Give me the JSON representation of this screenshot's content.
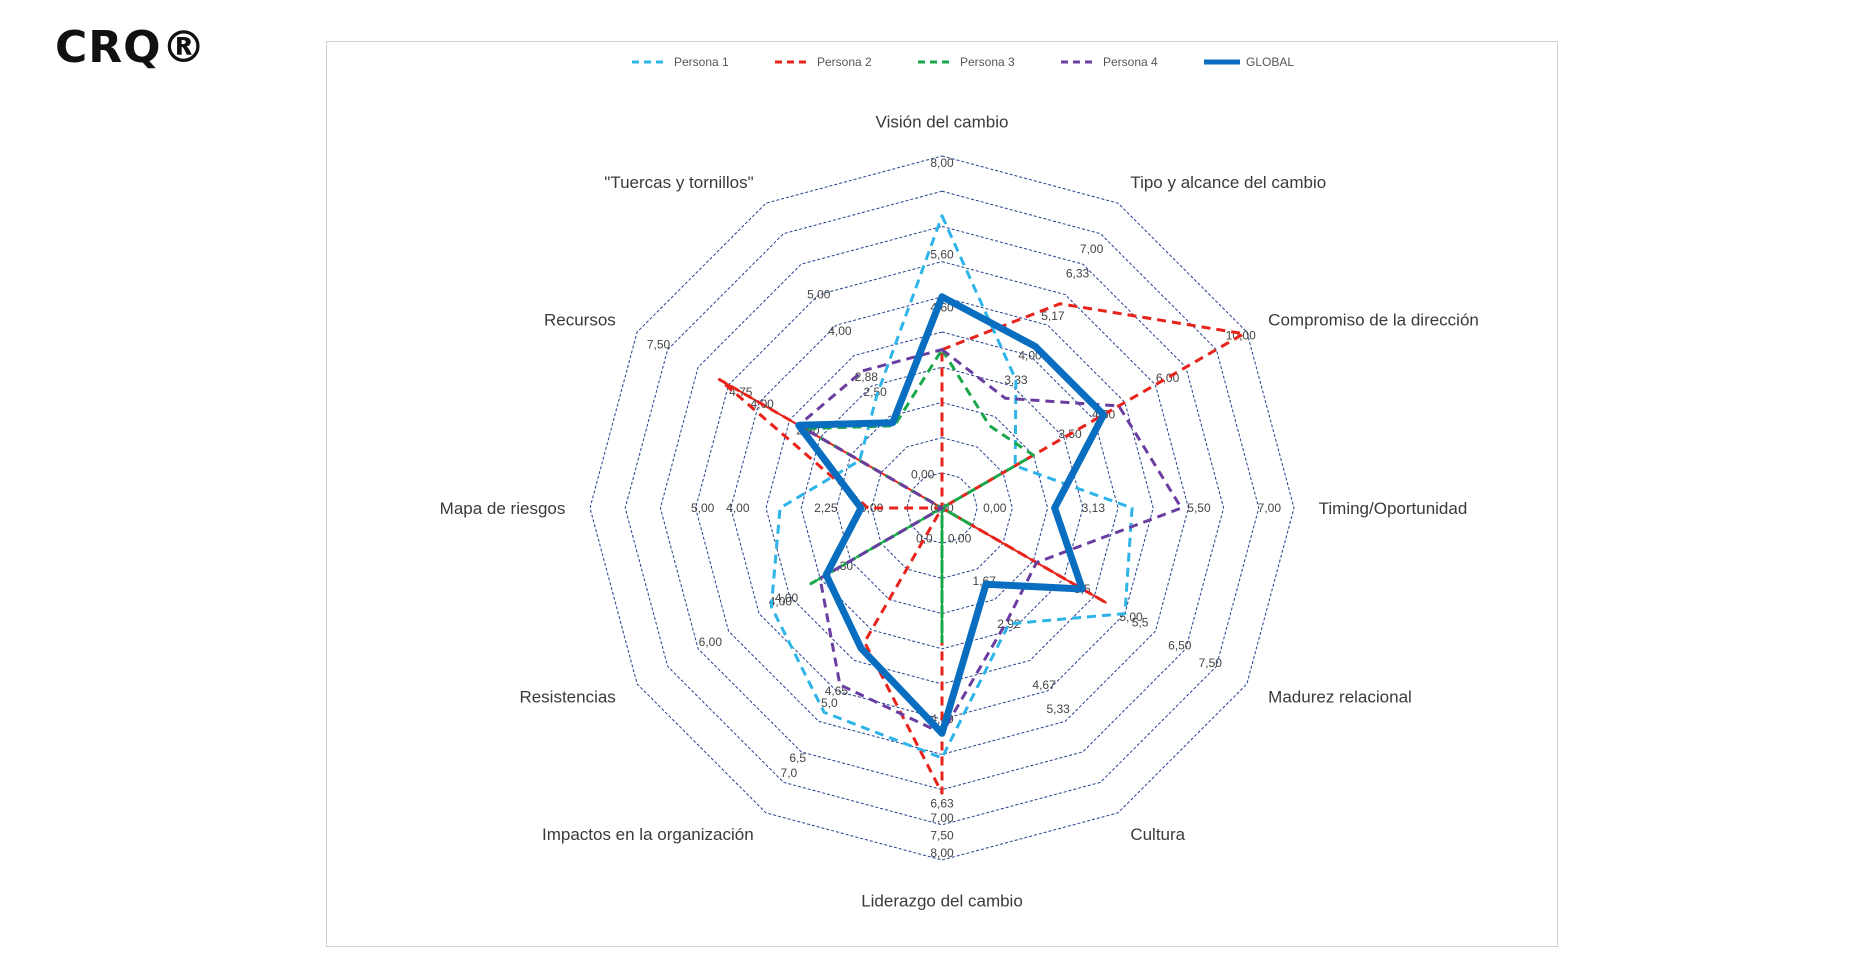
{
  "brand": {
    "title": "CRQ®"
  },
  "chart_data": {
    "type": "radar",
    "title": "",
    "axes": [
      "Visión del cambio",
      "Tipo y alcance del cambio",
      "Compromiso de la dirección",
      "Timing/Oportunidad",
      "Madurez relacional",
      "Cultura",
      "Liderazgo del cambio",
      "Impactos en la organización",
      "Resistencias",
      "Mapa de riesgos",
      "Recursos",
      "\"Tuercas y tornillos\""
    ],
    "value_range": [
      0,
      1
    ],
    "grid": true,
    "grid_levels": 10,
    "legend_position": "top",
    "tick_labels": [
      {
        "axis": 0,
        "labels": [
          [
            "5,60",
            0.72
          ],
          [
            "4,60",
            0.57
          ],
          [
            "0,00",
            0.0
          ],
          [
            "8,00",
            0.98
          ]
        ]
      },
      {
        "axis": 1,
        "labels": [
          [
            "7,00",
            0.85
          ],
          [
            "6,33",
            0.77
          ],
          [
            "5,17",
            0.63
          ],
          [
            "4,00",
            0.5
          ],
          [
            "3,33",
            0.42
          ]
        ]
      },
      {
        "axis": 2,
        "labels": [
          [
            "10,00",
            0.98
          ],
          [
            "6,00",
            0.74
          ],
          [
            "4,50",
            0.53
          ],
          [
            "3,50",
            0.42
          ]
        ]
      },
      {
        "axis": 3,
        "labels": [
          [
            "7,00",
            0.93
          ],
          [
            "5,50",
            0.73
          ],
          [
            "3,13",
            0.43
          ],
          [
            "0,00",
            0.15
          ]
        ]
      },
      {
        "axis": 4,
        "labels": [
          [
            "7,50",
            0.88
          ],
          [
            "6,50",
            0.78
          ],
          [
            "5,5",
            0.65
          ],
          [
            "5,00",
            0.62
          ],
          [
            "3,5",
            0.46
          ]
        ]
      },
      {
        "axis": 5,
        "labels": [
          [
            "5,33",
            0.66
          ],
          [
            "4,67",
            0.58
          ],
          [
            "2,92",
            0.38
          ],
          [
            "1,67",
            0.24
          ],
          [
            "0,00",
            0.1
          ]
        ]
      },
      {
        "axis": 6,
        "labels": [
          [
            "8,00",
            0.98
          ],
          [
            "7,50",
            0.93
          ],
          [
            "7,00",
            0.88
          ],
          [
            "6,63",
            0.84
          ],
          [
            "4,60",
            0.6
          ]
        ]
      },
      {
        "axis": 7,
        "labels": [
          [
            "7,0",
            0.87
          ],
          [
            "6,5",
            0.82
          ],
          [
            "5,0",
            0.64
          ],
          [
            "4,65",
            0.6
          ],
          [
            "0,0",
            0.1
          ]
        ]
      },
      {
        "axis": 8,
        "labels": [
          [
            "6,00",
            0.76
          ],
          [
            "4,00",
            0.53
          ],
          [
            "4,00",
            0.51
          ],
          [
            "2,30",
            0.33
          ]
        ]
      },
      {
        "axis": 9,
        "labels": [
          [
            "5,00",
            0.68
          ],
          [
            "4,00",
            0.58
          ],
          [
            "2,25",
            0.33
          ],
          [
            "0,00",
            0.2
          ]
        ]
      },
      {
        "axis": 10,
        "labels": [
          [
            "7,50",
            0.93
          ],
          [
            "4,75",
            0.66
          ],
          [
            "4,00",
            0.59
          ],
          [
            "2,50",
            0.44
          ]
        ]
      },
      {
        "axis": 11,
        "labels": [
          [
            "5,00",
            0.7
          ],
          [
            "4,00",
            0.58
          ],
          [
            "2,88",
            0.43
          ],
          [
            "2,50",
            0.38
          ],
          [
            "0,00",
            0.11
          ]
        ]
      }
    ],
    "series": [
      {
        "name": "Persona 1",
        "color": "#2db4e8",
        "dash": "dashed",
        "width": 3,
        "values": [
          0.83,
          0.42,
          0.24,
          0.54,
          0.6,
          0.38,
          0.71,
          0.67,
          0.56,
          0.46,
          0.27,
          0.37
        ]
      },
      {
        "name": "Persona 2",
        "color": "#e8231c",
        "dash": "dashed",
        "width": 3,
        "values": [
          0.45,
          0.67,
          0.99,
          0.0,
          0.54,
          0.0,
          0.81,
          0.44,
          0.0,
          0.21,
          0.73,
          0.0
        ]
      },
      {
        "name": "Persona 3",
        "color": "#18a84a",
        "dash": "dashed",
        "width": 3,
        "values": [
          0.45,
          0.27,
          0.3,
          0.0,
          0.1,
          0.0,
          0.38,
          0.0,
          0.43,
          0.0,
          0.45,
          0.27
        ]
      },
      {
        "name": "Persona 4",
        "color": "#6a3ea1",
        "dash": "dashed",
        "width": 3,
        "values": [
          0.45,
          0.36,
          0.58,
          0.68,
          0.31,
          0.37,
          0.64,
          0.58,
          0.4,
          0.0,
          0.47,
          0.45
        ]
      },
      {
        "name": "GLOBAL",
        "color": "#0a6ec0",
        "dash": "solid",
        "width": 7,
        "values": [
          0.6,
          0.53,
          0.53,
          0.32,
          0.46,
          0.25,
          0.64,
          0.46,
          0.38,
          0.23,
          0.47,
          0.28
        ]
      }
    ]
  }
}
